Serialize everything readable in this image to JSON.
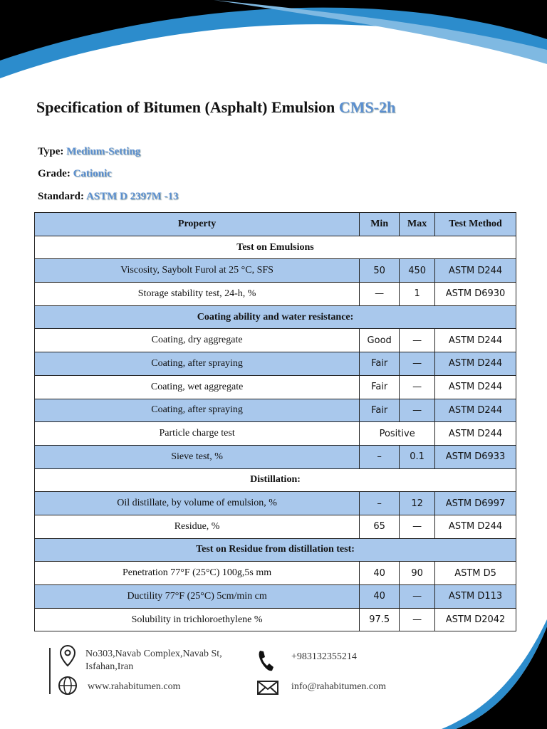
{
  "header": {
    "title": "Specification of Bitumen (Asphalt) Emulsion",
    "code": "CMS-2h"
  },
  "fields": [
    {
      "label": "Type:",
      "value": "Medium-Setting"
    },
    {
      "label": "Grade:",
      "value": "Cationic"
    },
    {
      "label": "Standard:",
      "value": "ASTM D 2397M -13"
    }
  ],
  "table": {
    "header": [
      "Property",
      "Min",
      "Max",
      "Test Method"
    ],
    "rows": [
      [
        "Test on Emulsions"
      ],
      [
        "Viscosity, Saybolt Furol at 25 °C, SFS",
        "50",
        "450",
        "ASTM D244"
      ],
      [
        "Storage stability test, 24-h, %",
        "—",
        "1",
        "ASTM D6930"
      ],
      [
        "Coating ability and water resistance:"
      ],
      [
        "Coating, dry aggregate",
        "Good",
        "—",
        "ASTM D244"
      ],
      [
        "Coating, after spraying",
        "Fair",
        "—",
        "ASTM D244"
      ],
      [
        "Coating, wet aggregate",
        "Fair",
        "—",
        "ASTM D244"
      ],
      [
        "Coating, after spraying",
        "Fair",
        "—",
        "ASTM D244"
      ],
      [
        "Particle charge test",
        "Positive",
        "ASTM D244"
      ],
      [
        "Sieve test, %",
        "–",
        "0.1",
        "ASTM D6933"
      ],
      [
        "Distillation:"
      ],
      [
        "Oil distillate, by volume of emulsion, %",
        "–",
        "12",
        "ASTM D6997"
      ],
      [
        "Residue, %",
        "65",
        "—",
        "ASTM D244"
      ],
      [
        "Test on Residue from distillation test:"
      ],
      [
        "Penetration 77°F (25°C) 100g,5s mm",
        "40",
        "90",
        "ASTM D5"
      ],
      [
        "Ductility 77°F (25°C) 5cm/min cm",
        "40",
        "—",
        "ASTM D113"
      ],
      [
        "Solubility in trichloroethylene %",
        "97.5",
        "—",
        "ASTM D2042"
      ]
    ]
  },
  "footer": {
    "address": [
      "No303,Navab Complex,Navab St,",
      "Isfahan,Iran"
    ],
    "website": "www.rahabitumen.com",
    "phone": "+983132355214",
    "email": "info@rahabitumen.com"
  }
}
